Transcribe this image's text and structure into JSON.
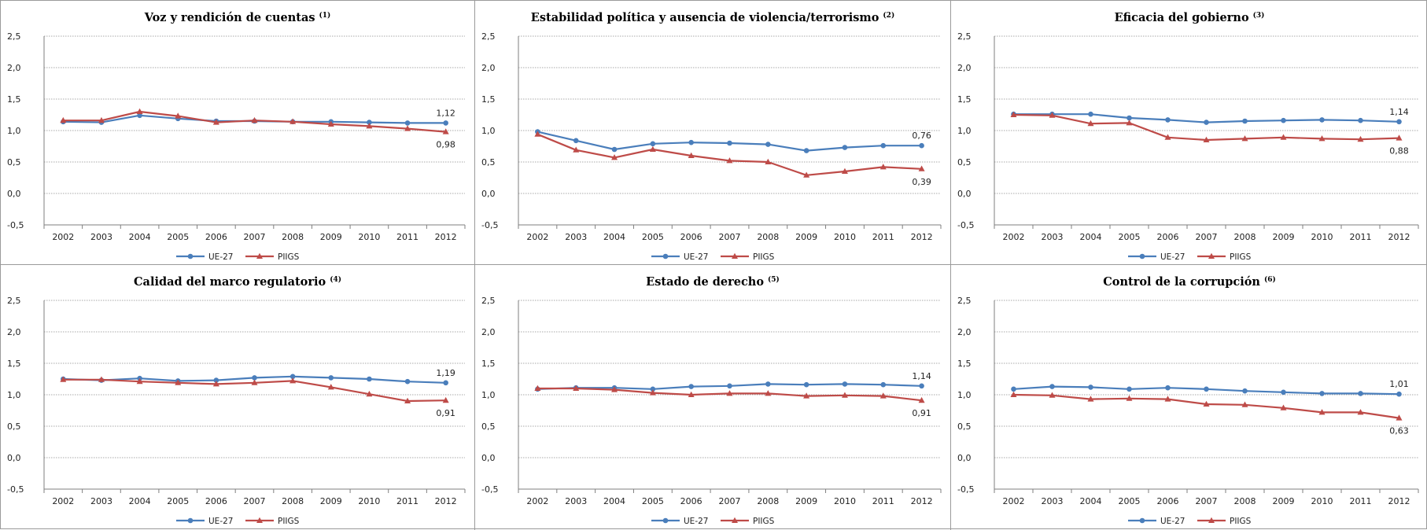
{
  "chart_data": [
    {
      "type": "line",
      "title": "Voz y rendición de cuentas",
      "note": "(1)",
      "x": [
        "2002",
        "2003",
        "2004",
        "2005",
        "2006",
        "2007",
        "2008",
        "2009",
        "2010",
        "2011",
        "2012"
      ],
      "ylim": [
        -0.5,
        2.5
      ],
      "yticks": [
        "2,5",
        "2,0",
        "1,5",
        "1,0",
        "0,5",
        "0,0",
        "-0,5"
      ],
      "grid": true,
      "legend": "bottom",
      "series": [
        {
          "name": "UE-27",
          "color": "#4a7ebb",
          "marker": "circle",
          "values": [
            1.14,
            1.13,
            1.24,
            1.19,
            1.15,
            1.15,
            1.14,
            1.14,
            1.13,
            1.12,
            1.12
          ],
          "end_label": "1,12"
        },
        {
          "name": "PIIGS",
          "color": "#be4b48",
          "marker": "triangle",
          "values": [
            1.16,
            1.16,
            1.3,
            1.23,
            1.13,
            1.16,
            1.14,
            1.1,
            1.07,
            1.03,
            0.98
          ],
          "end_label": "0,98"
        }
      ]
    },
    {
      "type": "line",
      "title": "Estabilidad política y ausencia de violencia/terrorismo",
      "note": "(2)",
      "x": [
        "2002",
        "2003",
        "2004",
        "2005",
        "2006",
        "2007",
        "2008",
        "2009",
        "2010",
        "2011",
        "2012"
      ],
      "ylim": [
        -0.5,
        2.5
      ],
      "yticks": [
        "2,5",
        "2,0",
        "1,5",
        "1,0",
        "0,5",
        "0,0",
        "-0,5"
      ],
      "grid": true,
      "legend": "bottom",
      "series": [
        {
          "name": "UE-27",
          "color": "#4a7ebb",
          "marker": "circle",
          "values": [
            0.98,
            0.84,
            0.7,
            0.79,
            0.81,
            0.8,
            0.78,
            0.68,
            0.73,
            0.76,
            0.76
          ],
          "end_label": "0,76"
        },
        {
          "name": "PIIGS",
          "color": "#be4b48",
          "marker": "triangle",
          "values": [
            0.94,
            0.69,
            0.57,
            0.7,
            0.6,
            0.52,
            0.5,
            0.29,
            0.35,
            0.42,
            0.39
          ],
          "end_label": "0,39"
        }
      ]
    },
    {
      "type": "line",
      "title": "Eficacia del gobierno",
      "note": "(3)",
      "x": [
        "2002",
        "2003",
        "2004",
        "2005",
        "2006",
        "2007",
        "2008",
        "2009",
        "2010",
        "2011",
        "2012"
      ],
      "ylim": [
        -0.5,
        2.5
      ],
      "yticks": [
        "2,5",
        "2,0",
        "1,5",
        "1,0",
        "0,5",
        "0,0",
        "-0,5"
      ],
      "grid": true,
      "legend": "bottom",
      "series": [
        {
          "name": "UE-27",
          "color": "#4a7ebb",
          "marker": "circle",
          "values": [
            1.26,
            1.26,
            1.26,
            1.2,
            1.17,
            1.13,
            1.15,
            1.16,
            1.17,
            1.16,
            1.14
          ],
          "end_label": "1,14"
        },
        {
          "name": "PIIGS",
          "color": "#be4b48",
          "marker": "triangle",
          "values": [
            1.25,
            1.24,
            1.11,
            1.12,
            0.89,
            0.85,
            0.87,
            0.89,
            0.87,
            0.86,
            0.88
          ],
          "end_label": "0,88"
        }
      ]
    },
    {
      "type": "line",
      "title": "Calidad del marco regulatorio",
      "note": "(4)",
      "x": [
        "2002",
        "2003",
        "2004",
        "2005",
        "2006",
        "2007",
        "2008",
        "2009",
        "2010",
        "2011",
        "2012"
      ],
      "ylim": [
        -0.5,
        2.5
      ],
      "yticks": [
        "2,5",
        "2,0",
        "1,5",
        "1,0",
        "0,5",
        "0,0",
        "-0,5"
      ],
      "grid": true,
      "legend": "bottom",
      "series": [
        {
          "name": "UE-27",
          "color": "#4a7ebb",
          "marker": "circle",
          "values": [
            1.25,
            1.23,
            1.26,
            1.22,
            1.23,
            1.27,
            1.29,
            1.27,
            1.25,
            1.21,
            1.19
          ],
          "end_label": "1,19"
        },
        {
          "name": "PIIGS",
          "color": "#be4b48",
          "marker": "triangle",
          "values": [
            1.24,
            1.24,
            1.21,
            1.19,
            1.17,
            1.19,
            1.22,
            1.12,
            1.01,
            0.9,
            0.91
          ],
          "end_label": "0,91"
        }
      ]
    },
    {
      "type": "line",
      "title": "Estado de derecho",
      "note": "(5)",
      "x": [
        "2002",
        "2003",
        "2004",
        "2005",
        "2006",
        "2007",
        "2008",
        "2009",
        "2010",
        "2011",
        "2012"
      ],
      "ylim": [
        -0.5,
        2.5
      ],
      "yticks": [
        "2,5",
        "2,0",
        "1,5",
        "1,0",
        "0,5",
        "0,0",
        "-0,5"
      ],
      "grid": true,
      "legend": "bottom",
      "series": [
        {
          "name": "UE-27",
          "color": "#4a7ebb",
          "marker": "circle",
          "values": [
            1.09,
            1.11,
            1.11,
            1.09,
            1.13,
            1.14,
            1.17,
            1.16,
            1.17,
            1.16,
            1.14
          ],
          "end_label": "1,14"
        },
        {
          "name": "PIIGS",
          "color": "#be4b48",
          "marker": "triangle",
          "values": [
            1.1,
            1.1,
            1.08,
            1.03,
            1.0,
            1.02,
            1.02,
            0.98,
            0.99,
            0.98,
            0.91
          ],
          "end_label": "0,91"
        }
      ]
    },
    {
      "type": "line",
      "title": "Control de la corrupción",
      "note": "(6)",
      "x": [
        "2002",
        "2003",
        "2004",
        "2005",
        "2006",
        "2007",
        "2008",
        "2009",
        "2010",
        "2011",
        "2012"
      ],
      "ylim": [
        -0.5,
        2.5
      ],
      "yticks": [
        "2,5",
        "2,0",
        "1,5",
        "1,0",
        "0,5",
        "0,0",
        "-0,5"
      ],
      "grid": true,
      "legend": "bottom",
      "series": [
        {
          "name": "UE-27",
          "color": "#4a7ebb",
          "marker": "circle",
          "values": [
            1.09,
            1.13,
            1.12,
            1.09,
            1.11,
            1.09,
            1.06,
            1.04,
            1.02,
            1.02,
            1.01
          ],
          "end_label": "1,01"
        },
        {
          "name": "PIIGS",
          "color": "#be4b48",
          "marker": "triangle",
          "values": [
            1.0,
            0.99,
            0.93,
            0.94,
            0.93,
            0.85,
            0.84,
            0.79,
            0.72,
            0.72,
            0.63
          ],
          "end_label": "0,63"
        }
      ]
    }
  ]
}
